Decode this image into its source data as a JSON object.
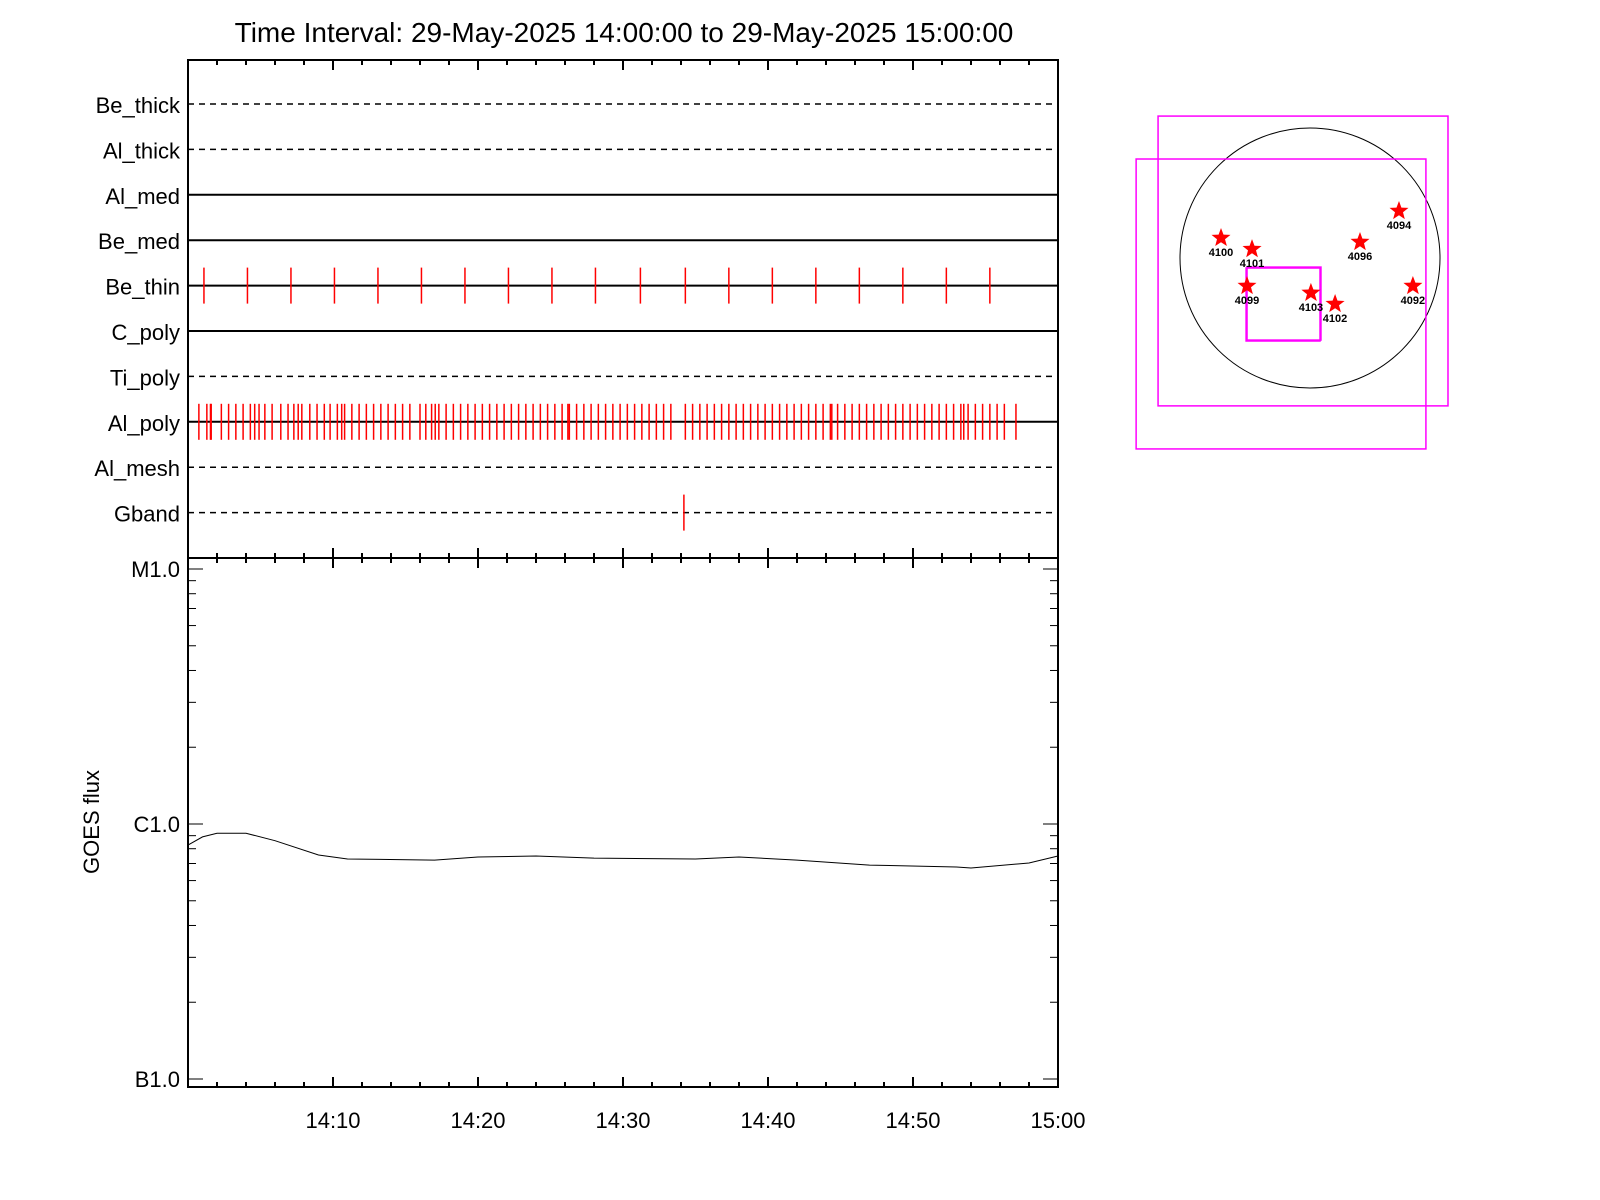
{
  "chart_data": [
    {
      "type": "event-timeline",
      "title": "Time Interval: 29-May-2025 14:00:00 to 29-May-2025 15:00:00",
      "xlim_minutes_after_14_00": [
        0,
        60
      ],
      "channels": [
        {
          "name": "Be_thick",
          "style": "dashed",
          "events": []
        },
        {
          "name": "Al_thick",
          "style": "dashed",
          "events": []
        },
        {
          "name": "Al_med",
          "style": "solid",
          "events": []
        },
        {
          "name": "Be_med",
          "style": "solid",
          "events": []
        },
        {
          "name": "Be_thin",
          "style": "solid",
          "events": [
            1.1,
            4.1,
            7.1,
            10.1,
            13.1,
            16.1,
            19.1,
            22.1,
            25.1,
            28.1,
            31.2,
            34.3,
            37.3,
            40.3,
            43.3,
            46.3,
            49.3,
            52.3,
            55.3
          ]
        },
        {
          "name": "C_poly",
          "style": "solid",
          "events": []
        },
        {
          "name": "Ti_poly",
          "style": "dashed",
          "events": []
        },
        {
          "name": "Al_poly",
          "style": "solid",
          "events": [
            0.75,
            1.3,
            1.55,
            1.6,
            2.3,
            2.8,
            3.3,
            3.8,
            4.3,
            4.6,
            4.9,
            5.3,
            5.8,
            6.4,
            6.9,
            7.3,
            7.6,
            7.85,
            8.4,
            8.9,
            9.4,
            9.8,
            10.3,
            10.6,
            10.8,
            11.3,
            11.8,
            12.3,
            12.8,
            13.3,
            13.8,
            14.3,
            14.8,
            15.3,
            16.0,
            16.4,
            16.8,
            17.05,
            17.3,
            17.8,
            18.3,
            18.8,
            19.3,
            19.8,
            20.3,
            20.8,
            21.3,
            21.8,
            22.3,
            22.8,
            23.3,
            23.8,
            24.3,
            24.8,
            25.3,
            25.8,
            26.2,
            26.3,
            26.8,
            27.3,
            27.8,
            28.3,
            28.8,
            29.3,
            29.8,
            30.3,
            30.8,
            31.3,
            31.8,
            32.3,
            32.8,
            33.3,
            34.3,
            34.8,
            35.3,
            35.8,
            36.3,
            36.8,
            37.3,
            37.8,
            38.3,
            38.8,
            39.3,
            39.8,
            40.3,
            40.8,
            41.3,
            41.8,
            42.3,
            42.8,
            43.3,
            43.8,
            44.3,
            44.4,
            44.8,
            45.3,
            45.8,
            46.3,
            46.8,
            47.3,
            47.8,
            48.3,
            48.8,
            49.3,
            49.8,
            50.3,
            50.8,
            51.3,
            51.8,
            52.3,
            52.8,
            53.3,
            53.5,
            53.8,
            54.3,
            54.8,
            55.3,
            55.8,
            56.3,
            57.1
          ]
        },
        {
          "name": "Al_mesh",
          "style": "dashed",
          "events": []
        },
        {
          "name": "Gband",
          "style": "dashed",
          "events": [
            34.2
          ]
        }
      ]
    },
    {
      "type": "line",
      "ylabel": "GOES flux",
      "yscale": "log",
      "ylim": [
        1e-07,
        1e-05
      ],
      "yticks": [
        {
          "v": 1e-07,
          "label": "B1.0"
        },
        {
          "v": 1e-06,
          "label": "C1.0"
        },
        {
          "v": 1e-05,
          "label": "M1.0"
        }
      ],
      "xticks": [
        {
          "v": 10,
          "label": "14:10"
        },
        {
          "v": 20,
          "label": "14:20"
        },
        {
          "v": 30,
          "label": "14:30"
        },
        {
          "v": 40,
          "label": "14:40"
        },
        {
          "v": 50,
          "label": "14:50"
        },
        {
          "v": 60,
          "label": "15:00"
        }
      ],
      "x": [
        0,
        1,
        2,
        4,
        6,
        9,
        11,
        17,
        20,
        24,
        28,
        35,
        38,
        42,
        47,
        53,
        54,
        58,
        60
      ],
      "y": [
        8.27e-07,
        8.9e-07,
        9.2e-07,
        9.2e-07,
        8.6e-07,
        7.56e-07,
        7.29e-07,
        7.22e-07,
        7.42e-07,
        7.49e-07,
        7.35e-07,
        7.29e-07,
        7.42e-07,
        7.22e-07,
        6.9e-07,
        6.78e-07,
        6.72e-07,
        7.03e-07,
        7.49e-07
      ],
      "color": "#000000"
    },
    {
      "type": "scatter",
      "description_units": "arcsec",
      "solar_radius": 960,
      "limb_color": "#000000",
      "marker_color": "#ff0000",
      "box_color": "#ff00ff",
      "regions": [
        {
          "label": "4100",
          "x": -657,
          "y": 148
        },
        {
          "label": "4101",
          "x": -428,
          "y": 66
        },
        {
          "label": "4099",
          "x": -465,
          "y": -207
        },
        {
          "label": "4103",
          "x": 7,
          "y": -258
        },
        {
          "label": "4102",
          "x": 185,
          "y": -340
        },
        {
          "label": "4096",
          "x": 369,
          "y": 118
        },
        {
          "label": "4094",
          "x": 657,
          "y": 347
        },
        {
          "label": "4092",
          "x": 760,
          "y": -207
        }
      ],
      "boxes": [
        {
          "x0": -1122,
          "x1": 1019,
          "y0": -1092,
          "y1": 1048
        },
        {
          "x0": -1284,
          "x1": 856,
          "y0": -1410,
          "y1": 731
        },
        {
          "x0": -472,
          "x1": 74,
          "y0": -613,
          "y1": -74
        },
        {
          "x0": -465,
          "x1": 81,
          "y0": -606,
          "y1": -67
        }
      ]
    }
  ]
}
